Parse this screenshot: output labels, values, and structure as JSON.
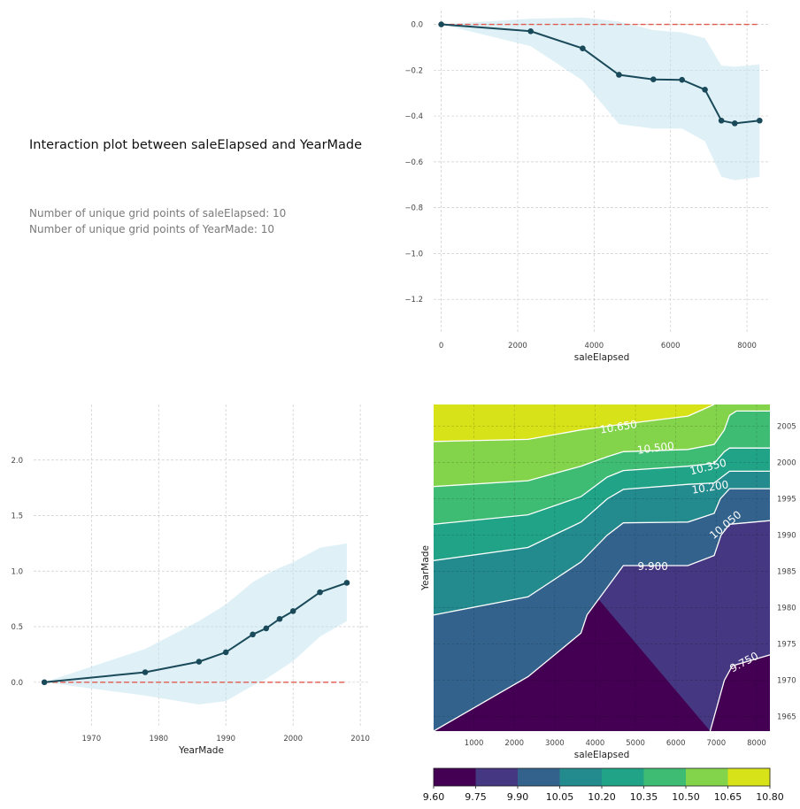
{
  "header": {
    "title": "Interaction plot between saleElapsed and YearMade",
    "grid_line_1": "Number of unique grid points of saleElapsed: 10",
    "grid_line_2": "Number of unique grid points of YearMade: 10"
  },
  "colors": {
    "line": "#1a4a5a",
    "band": "#bfe3f0",
    "baseline": "#e05a4f",
    "grid": "#cccccc",
    "viridis": [
      "#440154",
      "#453781",
      "#33638d",
      "#238a8d",
      "#20a386",
      "#3fbc73",
      "#84d44b",
      "#d8e219"
    ]
  },
  "chart_data": [
    {
      "type": "line",
      "id": "pdp-saleElapsed",
      "xlabel": "saleElapsed",
      "ylabel": "",
      "xlim": [
        -200,
        8600
      ],
      "ylim": [
        -1.35,
        0.06
      ],
      "xticks": [
        0,
        2000,
        4000,
        6000,
        8000
      ],
      "xtick_labels": [
        "0",
        "2000",
        "4000",
        "6000",
        "8000"
      ],
      "yticks": [
        0.0,
        -0.2,
        -0.4,
        -0.6,
        -0.8,
        -1.0,
        -1.2
      ],
      "ytick_labels": [
        "0.0",
        "−0.2",
        "−0.4",
        "−0.6",
        "−0.8",
        "−1.0",
        "−1.2"
      ],
      "grid": true,
      "x": [
        0,
        2340,
        3700,
        4650,
        5550,
        6300,
        6900,
        7330,
        7680,
        8330
      ],
      "y": [
        0.0,
        -0.03,
        -0.105,
        -0.22,
        -0.24,
        -0.242,
        -0.285,
        -0.42,
        -0.432,
        -0.42
      ],
      "band_upper": [
        0.0,
        0.025,
        0.03,
        0.012,
        -0.025,
        -0.035,
        -0.06,
        -0.18,
        -0.185,
        -0.175
      ],
      "band_lower": [
        0.0,
        -0.095,
        -0.245,
        -0.435,
        -0.455,
        -0.455,
        -0.51,
        -0.665,
        -0.68,
        -0.665
      ],
      "baseline": 0.0
    },
    {
      "type": "line",
      "id": "pdp-YearMade",
      "xlabel": "YearMade",
      "ylabel": "",
      "xlim": [
        1961.4,
        2011.3
      ],
      "ylim": [
        -0.4,
        2.5
      ],
      "xticks": [
        1970,
        1980,
        1990,
        2000,
        2010
      ],
      "xtick_labels": [
        "1970",
        "1980",
        "1990",
        "2000",
        "2010"
      ],
      "yticks": [
        0.0,
        0.5,
        1.0,
        1.5,
        2.0
      ],
      "ytick_labels": [
        "0.0",
        "0.5",
        "1.0",
        "1.5",
        "2.0"
      ],
      "grid": true,
      "x": [
        1963,
        1978,
        1986,
        1990,
        1994,
        1996,
        1998,
        2000,
        2004,
        2008
      ],
      "y": [
        0.0,
        0.09,
        0.185,
        0.27,
        0.43,
        0.485,
        0.57,
        0.64,
        0.81,
        0.895
      ],
      "band_upper": [
        0.0,
        0.3,
        0.55,
        0.7,
        0.9,
        0.97,
        1.03,
        1.08,
        1.21,
        1.25
      ],
      "band_lower": [
        0.0,
        -0.12,
        -0.2,
        -0.17,
        -0.03,
        0.03,
        0.11,
        0.19,
        0.41,
        0.55
      ],
      "baseline": 0.0
    },
    {
      "type": "heatmap",
      "id": "interaction-contour",
      "xlabel": "saleElapsed",
      "ylabel": "YearMade",
      "xlim": [
        0,
        8330
      ],
      "ylim": [
        1963,
        2008
      ],
      "xticks": [
        1000,
        2000,
        3000,
        4000,
        5000,
        6000,
        7000,
        8000
      ],
      "xtick_labels": [
        "1000",
        "2000",
        "3000",
        "4000",
        "5000",
        "6000",
        "7000",
        "8000"
      ],
      "yticks": [
        1965,
        1970,
        1975,
        1980,
        1985,
        1990,
        1995,
        2000,
        2005
      ],
      "ytick_labels": [
        "1965",
        "1970",
        "1975",
        "1980",
        "1985",
        "1990",
        "1995",
        "2000",
        "2005"
      ],
      "grid": true,
      "levels": [
        9.6,
        9.75,
        9.9,
        10.05,
        10.2,
        10.35,
        10.5,
        10.65,
        10.8
      ],
      "colorbar_labels": [
        "9.60",
        "9.75",
        "9.90",
        "10.05",
        "10.20",
        "10.35",
        "10.50",
        "10.65",
        "10.80"
      ],
      "contour_labels": [
        {
          "text": "10.650",
          "x": 4580,
          "y": 2004.9,
          "angle": -9
        },
        {
          "text": "10.500",
          "x": 5500,
          "y": 2002.0,
          "angle": -7
        },
        {
          "text": "10.350",
          "x": 6800,
          "y": 1999.4,
          "angle": -14
        },
        {
          "text": "10.200",
          "x": 6850,
          "y": 1996.6,
          "angle": -9
        },
        {
          "text": "10.050",
          "x": 7230,
          "y": 1991.4,
          "angle": -40
        },
        {
          "text": "9.900",
          "x": 5430,
          "y": 1985.7,
          "angle": 0
        },
        {
          "text": "9.750",
          "x": 7690,
          "y": 1972.5,
          "angle": -28
        }
      ],
      "contours": [
        {
          "level": 9.75,
          "points": [
            [
              6850,
              1963
            ],
            [
              7200,
              1970
            ],
            [
              7400,
              1972
            ],
            [
              8330,
              1973.5
            ]
          ]
        },
        {
          "level": 9.9,
          "points": [
            [
              0,
              1963
            ],
            [
              2340,
              1970.5
            ],
            [
              3650,
              1976.5
            ],
            [
              3800,
              1979
            ],
            [
              4700,
              1985.8
            ],
            [
              6300,
              1985.8
            ],
            [
              6950,
              1987.2
            ],
            [
              7120,
              1990
            ],
            [
              7330,
              1991.5
            ],
            [
              8330,
              1992
            ]
          ]
        },
        {
          "level": 10.05,
          "points": [
            [
              0,
              1979
            ],
            [
              2340,
              1981.5
            ],
            [
              3650,
              1986.3
            ],
            [
              4300,
              1990
            ],
            [
              4700,
              1991.7
            ],
            [
              6300,
              1991.8
            ],
            [
              6950,
              1993
            ],
            [
              7100,
              1995
            ],
            [
              7330,
              1996.4
            ],
            [
              8330,
              1996.4
            ]
          ]
        },
        {
          "level": 10.2,
          "points": [
            [
              0,
              1986.5
            ],
            [
              2340,
              1988.3
            ],
            [
              3650,
              1991.8
            ],
            [
              4300,
              1995
            ],
            [
              4700,
              1996.3
            ],
            [
              6300,
              1997.0
            ],
            [
              6950,
              1997.2
            ],
            [
              7330,
              1998.8
            ],
            [
              8330,
              1998.8
            ]
          ]
        },
        {
          "level": 10.35,
          "points": [
            [
              0,
              1991.5
            ],
            [
              2340,
              1992.8
            ],
            [
              3650,
              1995.3
            ],
            [
              4300,
              1998
            ],
            [
              4700,
              1998.9
            ],
            [
              6300,
              1999.5
            ],
            [
              6950,
              1999.9
            ],
            [
              7200,
              2001.5
            ],
            [
              7330,
              2002.0
            ],
            [
              8330,
              2002.0
            ]
          ]
        },
        {
          "level": 10.5,
          "points": [
            [
              0,
              1996.7
            ],
            [
              2340,
              1997.5
            ],
            [
              3650,
              1999.5
            ],
            [
              4300,
              2000.8
            ],
            [
              4700,
              2001.5
            ],
            [
              6300,
              2001.8
            ],
            [
              6950,
              2002.5
            ],
            [
              7200,
              2004.5
            ],
            [
              7330,
              2006.5
            ],
            [
              7500,
              2007.1
            ],
            [
              8330,
              2007.1
            ]
          ]
        },
        {
          "level": 10.65,
          "points": [
            [
              0,
              2002.9
            ],
            [
              2340,
              2003.2
            ],
            [
              3650,
              2004.5
            ],
            [
              4700,
              2005.3
            ],
            [
              6300,
              2006.4
            ],
            [
              6950,
              2008
            ]
          ]
        }
      ]
    }
  ]
}
